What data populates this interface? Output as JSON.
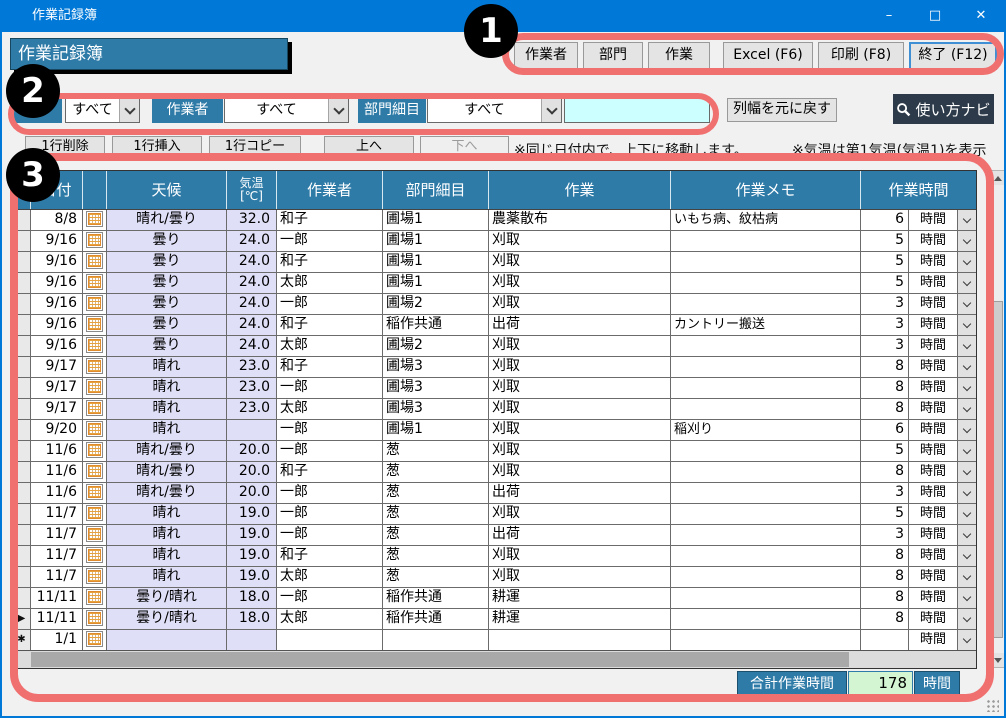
{
  "window": {
    "title": "作業記録簿",
    "minimize": "–",
    "maximize": "□",
    "close": "✕"
  },
  "header": {
    "page_title": "作業記録簿",
    "btn_worker": "作業者",
    "btn_department": "部門",
    "btn_work": "作業",
    "btn_excel": "Excel (F6)",
    "btn_print": "印刷 (F8)",
    "btn_exit": "終了 (F12)"
  },
  "filters": {
    "month_label": "月",
    "month_value": "すべて",
    "worker_label": "作業者",
    "worker_value": "すべて",
    "dept_label": "部門細目",
    "dept_value": "すべて",
    "search_value": "",
    "reset_width_label": "列幅を元に戻す",
    "help_label": "使い方ナビ"
  },
  "toolbar": {
    "delete_row": "1行削除",
    "insert_row": "1行挿入",
    "copy_row": "1行コピー",
    "move_up": "上へ",
    "move_down": "下へ",
    "note_move": "※同じ日付内で、上下に移動します。",
    "note_temp": "※気温は第1気温(気温1)を表示"
  },
  "table": {
    "columns": {
      "date": "日付",
      "weather": "天候",
      "temp": "気温",
      "temp_unit": "[℃]",
      "worker": "作業者",
      "dept": "部門細目",
      "work": "作業",
      "memo": "作業メモ",
      "hours": "作業時間"
    },
    "unit": "時間",
    "current_row_marker": "▶",
    "new_row_marker": "✱",
    "rows": [
      {
        "sel": "",
        "date": "8/8",
        "weather": "晴れ/曇り",
        "temp": "32.0",
        "worker": "和子",
        "dept": "圃場1",
        "work": "農薬散布",
        "memo": "いもち病、紋枯病",
        "hours": "6"
      },
      {
        "sel": "",
        "date": "9/16",
        "weather": "曇り",
        "temp": "24.0",
        "worker": "一郎",
        "dept": "圃場1",
        "work": "刈取",
        "memo": "",
        "hours": "5"
      },
      {
        "sel": "",
        "date": "9/16",
        "weather": "曇り",
        "temp": "24.0",
        "worker": "和子",
        "dept": "圃場1",
        "work": "刈取",
        "memo": "",
        "hours": "5"
      },
      {
        "sel": "",
        "date": "9/16",
        "weather": "曇り",
        "temp": "24.0",
        "worker": "太郎",
        "dept": "圃場1",
        "work": "刈取",
        "memo": "",
        "hours": "5"
      },
      {
        "sel": "",
        "date": "9/16",
        "weather": "曇り",
        "temp": "24.0",
        "worker": "一郎",
        "dept": "圃場2",
        "work": "刈取",
        "memo": "",
        "hours": "3"
      },
      {
        "sel": "",
        "date": "9/16",
        "weather": "曇り",
        "temp": "24.0",
        "worker": "和子",
        "dept": "稲作共通",
        "work": "出荷",
        "memo": "カントリー搬送",
        "hours": "3"
      },
      {
        "sel": "",
        "date": "9/16",
        "weather": "曇り",
        "temp": "24.0",
        "worker": "太郎",
        "dept": "圃場2",
        "work": "刈取",
        "memo": "",
        "hours": "3"
      },
      {
        "sel": "",
        "date": "9/17",
        "weather": "晴れ",
        "temp": "23.0",
        "worker": "和子",
        "dept": "圃場3",
        "work": "刈取",
        "memo": "",
        "hours": "8"
      },
      {
        "sel": "",
        "date": "9/17",
        "weather": "晴れ",
        "temp": "23.0",
        "worker": "一郎",
        "dept": "圃場3",
        "work": "刈取",
        "memo": "",
        "hours": "8"
      },
      {
        "sel": "",
        "date": "9/17",
        "weather": "晴れ",
        "temp": "23.0",
        "worker": "太郎",
        "dept": "圃場3",
        "work": "刈取",
        "memo": "",
        "hours": "8"
      },
      {
        "sel": "",
        "date": "9/20",
        "weather": "晴れ",
        "temp": "",
        "worker": "一郎",
        "dept": "圃場1",
        "work": "刈取",
        "memo": "稲刈り",
        "hours": "6"
      },
      {
        "sel": "",
        "date": "11/6",
        "weather": "晴れ/曇り",
        "temp": "20.0",
        "worker": "一郎",
        "dept": "葱",
        "work": "刈取",
        "memo": "",
        "hours": "5"
      },
      {
        "sel": "",
        "date": "11/6",
        "weather": "晴れ/曇り",
        "temp": "20.0",
        "worker": "和子",
        "dept": "葱",
        "work": "刈取",
        "memo": "",
        "hours": "8"
      },
      {
        "sel": "",
        "date": "11/6",
        "weather": "晴れ/曇り",
        "temp": "20.0",
        "worker": "一郎",
        "dept": "葱",
        "work": "出荷",
        "memo": "",
        "hours": "3"
      },
      {
        "sel": "",
        "date": "11/7",
        "weather": "晴れ",
        "temp": "19.0",
        "worker": "一郎",
        "dept": "葱",
        "work": "刈取",
        "memo": "",
        "hours": "5"
      },
      {
        "sel": "",
        "date": "11/7",
        "weather": "晴れ",
        "temp": "19.0",
        "worker": "一郎",
        "dept": "葱",
        "work": "出荷",
        "memo": "",
        "hours": "3"
      },
      {
        "sel": "",
        "date": "11/7",
        "weather": "晴れ",
        "temp": "19.0",
        "worker": "和子",
        "dept": "葱",
        "work": "刈取",
        "memo": "",
        "hours": "8"
      },
      {
        "sel": "",
        "date": "11/7",
        "weather": "晴れ",
        "temp": "19.0",
        "worker": "太郎",
        "dept": "葱",
        "work": "刈取",
        "memo": "",
        "hours": "8"
      },
      {
        "sel": "",
        "date": "11/11",
        "weather": "曇り/晴れ",
        "temp": "18.0",
        "worker": "一郎",
        "dept": "稲作共通",
        "work": "耕運",
        "memo": "",
        "hours": "8"
      },
      {
        "sel": "current",
        "date": "11/11",
        "weather": "曇り/晴れ",
        "temp": "18.0",
        "worker": "太郎",
        "dept": "稲作共通",
        "work": "耕運",
        "memo": "",
        "hours": "8"
      },
      {
        "sel": "new",
        "date": "1/1",
        "weather": "",
        "temp": "",
        "worker": "",
        "dept": "",
        "work": "",
        "memo": "",
        "hours": ""
      }
    ]
  },
  "footer": {
    "total_label": "合計作業時間",
    "total_value": "178",
    "total_unit": "時間"
  },
  "annotations": {
    "step1": "1",
    "step2": "2",
    "step3": "3"
  },
  "colors": {
    "titlebar": "#0078D7",
    "teal": "#2E7BA8",
    "lavender": "#DFDFF7",
    "cyan_input": "#CCFFFF",
    "green_total": "#D4F5D2",
    "annotation_red": "#F07070",
    "navi_dark": "#2C3A49"
  }
}
